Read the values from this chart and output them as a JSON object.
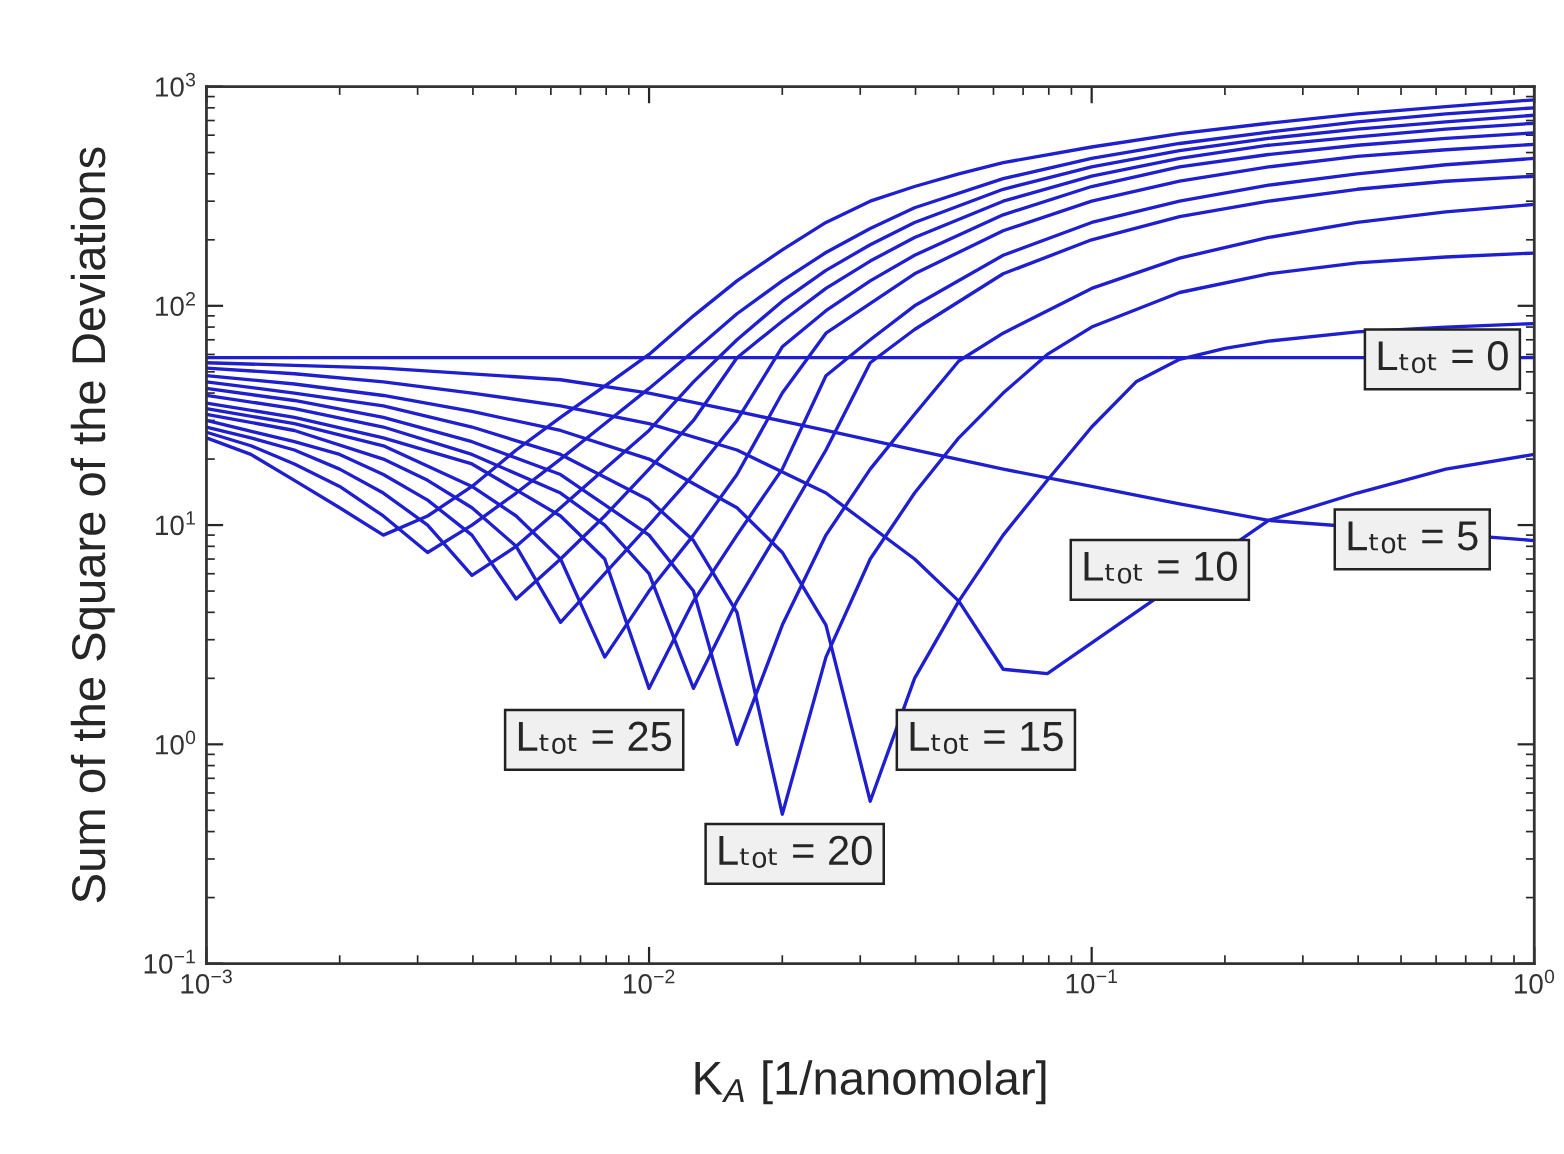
{
  "chart_data": {
    "type": "line",
    "xlabel": "K$_{A}$ [1/nanomolar]",
    "ylabel": "Sum of the Square of the Deviations",
    "log": "xy",
    "xlim": [
      0.001,
      1
    ],
    "ylim": [
      0.1,
      1000
    ],
    "xticks": [
      {
        "value": 0.001,
        "label": "10$^{−3}$"
      },
      {
        "value": 0.01,
        "label": "10$^{−2}$"
      },
      {
        "value": 0.1,
        "label": "10$^{−1}$"
      },
      {
        "value": 1,
        "label": "10$^{0}$"
      }
    ],
    "yticks": [
      {
        "value": 0.1,
        "label": "10$^{−1}$"
      },
      {
        "value": 1,
        "label": "10$^{0}$"
      },
      {
        "value": 10,
        "label": "10$^{1}$"
      },
      {
        "value": 100,
        "label": "10$^{2}$"
      },
      {
        "value": 1000,
        "label": "10$^{3}$"
      }
    ],
    "grid": false,
    "marker": "none",
    "line_style": "solid",
    "series": [
      {
        "color": "#1f1fd0",
        "x": [
          0.001,
          1
        ],
        "values": [
          58,
          58
        ]
      },
      {
        "color": "#1f1fd0",
        "x": [
          0.001,
          0.00251,
          0.00631,
          0.01,
          0.0158,
          0.0251,
          0.0398,
          0.0631,
          0.1,
          0.158,
          0.251,
          1
        ],
        "values": [
          55,
          52,
          46,
          40,
          33,
          27,
          22,
          18,
          15,
          12.5,
          10.5,
          8.5
        ]
      },
      {
        "color": "#1f1fd0",
        "x": [
          0.001,
          0.00158,
          0.00251,
          0.00398,
          0.00631,
          0.01,
          0.0158,
          0.0251,
          0.0398,
          0.0501,
          0.0631,
          0.0794,
          0.251,
          0.398,
          0.631,
          1
        ],
        "values": [
          52,
          49,
          45,
          40,
          35,
          29,
          22,
          14,
          7,
          4.5,
          2.2,
          2.1,
          10.5,
          14,
          18,
          21
        ]
      },
      {
        "color": "#1f1fd0",
        "x": [
          0.001,
          0.00158,
          0.00251,
          0.00398,
          0.00631,
          0.01,
          0.0158,
          0.02,
          0.0251,
          0.0316,
          0.0398,
          0.0501,
          0.0631,
          0.0794,
          0.1,
          0.126,
          0.158,
          0.2,
          0.251,
          0.398,
          0.631,
          1
        ],
        "values": [
          48,
          44,
          39,
          33,
          27,
          20,
          12,
          7.5,
          3.5,
          0.55,
          2,
          4.5,
          9,
          16,
          28,
          45,
          57,
          64,
          69,
          76,
          80,
          83
        ]
      },
      {
        "color": "#1f1fd0",
        "x": [
          0.001,
          0.00158,
          0.00251,
          0.00398,
          0.00631,
          0.01,
          0.0126,
          0.0158,
          0.02,
          0.0251,
          0.0316,
          0.0398,
          0.0501,
          0.0631,
          0.0794,
          0.1,
          0.158,
          0.251,
          0.398,
          0.631,
          1
        ],
        "values": [
          45,
          40,
          35,
          28,
          21,
          13,
          8.5,
          4,
          0.48,
          2.5,
          7,
          14,
          25,
          40,
          60,
          80,
          115,
          140,
          157,
          167,
          174
        ]
      },
      {
        "color": "#1f1fd0",
        "x": [
          0.001,
          0.00158,
          0.00251,
          0.00398,
          0.00631,
          0.01,
          0.0126,
          0.0158,
          0.02,
          0.0251,
          0.0316,
          0.0398,
          0.0501,
          0.0631,
          0.1,
          0.158,
          0.251,
          0.398,
          0.631,
          1
        ],
        "values": [
          42,
          37,
          31,
          24,
          17,
          9,
          5,
          1.0,
          3.5,
          9,
          18,
          32,
          56,
          75,
          120,
          165,
          205,
          240,
          268,
          290
        ]
      },
      {
        "color": "#1f1fd0",
        "x": [
          0.001,
          0.00158,
          0.00251,
          0.00398,
          0.00631,
          0.00794,
          0.01,
          0.0126,
          0.0158,
          0.02,
          0.0251,
          0.0316,
          0.0398,
          0.0631,
          0.1,
          0.158,
          0.251,
          0.398,
          0.631,
          1
        ],
        "values": [
          39,
          34,
          28,
          21,
          14,
          10,
          6,
          1.8,
          4.5,
          10,
          22,
          55,
          78,
          140,
          200,
          255,
          300,
          340,
          370,
          390
        ]
      },
      {
        "color": "#1f1fd0",
        "x": [
          0.001,
          0.00158,
          0.00251,
          0.00398,
          0.00631,
          0.00794,
          0.01,
          0.0126,
          0.0158,
          0.02,
          0.0251,
          0.0316,
          0.0398,
          0.0631,
          0.1,
          0.158,
          0.251,
          0.398,
          0.631,
          1
        ],
        "values": [
          36,
          31,
          25,
          19,
          11,
          7,
          1.8,
          4.5,
          9,
          18,
          48,
          70,
          100,
          170,
          240,
          300,
          355,
          400,
          440,
          470
        ]
      },
      {
        "color": "#1f1fd0",
        "x": [
          0.001,
          0.00158,
          0.00251,
          0.00398,
          0.00501,
          0.00631,
          0.00794,
          0.01,
          0.0126,
          0.0158,
          0.02,
          0.0251,
          0.0398,
          0.0631,
          0.1,
          0.158,
          0.251,
          0.398,
          0.631,
          1
        ],
        "values": [
          34,
          29,
          23,
          15,
          11,
          7,
          2.5,
          5,
          9,
          17,
          40,
          75,
          140,
          220,
          300,
          370,
          430,
          480,
          515,
          545
        ]
      },
      {
        "color": "#1f1fd0",
        "x": [
          0.001,
          0.00158,
          0.00251,
          0.00316,
          0.00398,
          0.00501,
          0.00631,
          0.00794,
          0.01,
          0.0126,
          0.0158,
          0.02,
          0.0251,
          0.0316,
          0.0398,
          0.0631,
          0.1,
          0.158,
          0.251,
          0.398,
          0.631,
          1
        ],
        "values": [
          32,
          27,
          20,
          16,
          12,
          8,
          3.6,
          6,
          10,
          17,
          30,
          65,
          95,
          130,
          170,
          260,
          350,
          430,
          490,
          540,
          580,
          615
        ]
      },
      {
        "color": "#1f1fd0",
        "x": [
          0.001,
          0.00158,
          0.002,
          0.00251,
          0.00316,
          0.00398,
          0.00501,
          0.00631,
          0.00794,
          0.01,
          0.0126,
          0.0158,
          0.02,
          0.0251,
          0.0316,
          0.0398,
          0.0631,
          0.1,
          0.158,
          0.251,
          0.398,
          0.631,
          1
        ],
        "values": [
          30,
          24,
          21,
          17,
          13,
          9,
          4.6,
          7,
          11,
          18,
          30,
          58,
          85,
          120,
          160,
          205,
          300,
          390,
          470,
          540,
          590,
          640,
          680
        ]
      },
      {
        "color": "#1f1fd0",
        "x": [
          0.001,
          0.00126,
          0.00158,
          0.002,
          0.00251,
          0.00316,
          0.00398,
          0.00501,
          0.00631,
          0.00794,
          0.01,
          0.0126,
          0.0158,
          0.02,
          0.0251,
          0.0316,
          0.0398,
          0.0631,
          0.1,
          0.158,
          0.251,
          0.398,
          0.631,
          1
        ],
        "values": [
          28,
          25,
          22,
          18,
          14,
          10,
          5.9,
          8,
          12,
          18,
          27,
          45,
          70,
          105,
          145,
          190,
          240,
          340,
          430,
          510,
          580,
          640,
          690,
          740
        ]
      },
      {
        "color": "#1f1fd0",
        "x": [
          0.001,
          0.00126,
          0.00158,
          0.002,
          0.00251,
          0.00316,
          0.00398,
          0.00501,
          0.00631,
          0.00794,
          0.01,
          0.0126,
          0.0158,
          0.02,
          0.0251,
          0.0316,
          0.0398,
          0.0631,
          0.1,
          0.158,
          0.251,
          0.398,
          0.631,
          1
        ],
        "values": [
          26.5,
          23,
          19,
          15,
          11,
          7.5,
          10,
          14,
          20,
          29,
          42,
          62,
          92,
          130,
          175,
          225,
          280,
          380,
          470,
          550,
          620,
          690,
          750,
          800
        ]
      },
      {
        "color": "#1f1fd0",
        "x": [
          0.001,
          0.00126,
          0.00158,
          0.002,
          0.00251,
          0.00316,
          0.00398,
          0.00501,
          0.00631,
          0.00794,
          0.01,
          0.0126,
          0.0158,
          0.02,
          0.0251,
          0.0316,
          0.0398,
          0.0501,
          0.0631,
          0.1,
          0.158,
          0.251,
          0.398,
          0.631,
          1
        ],
        "values": [
          25,
          21,
          16,
          12,
          9.0,
          11,
          15,
          22,
          31,
          43,
          60,
          90,
          130,
          180,
          240,
          300,
          350,
          400,
          450,
          530,
          610,
          680,
          750,
          810,
          870
        ]
      }
    ],
    "annotations": [
      {
        "text": "Lₜₒₜ = 0",
        "x": 0.62,
        "y": 57
      },
      {
        "text": "Lₜₒₜ = 5",
        "x": 0.53,
        "y": 8.6
      },
      "Lₜₒₜ = 10",
      "Lₜₒₜ = 15",
      "Lₜₒₜ = 20",
      "Lₜₒₜ = 25"
    ]
  }
}
